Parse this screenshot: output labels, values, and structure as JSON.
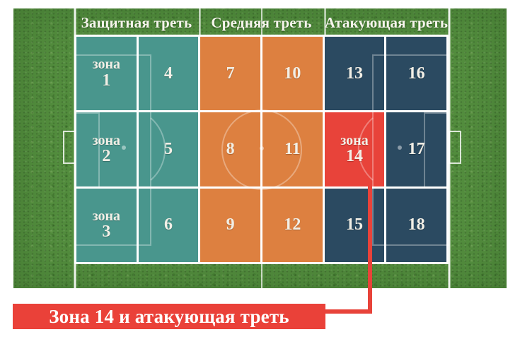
{
  "banner": {
    "label": "Зона 14 и атакующая треть"
  },
  "thirds": [
    {
      "id": "defensive",
      "label": "Защитная треть"
    },
    {
      "id": "middle",
      "label": "Средняя треть"
    },
    {
      "id": "attacking",
      "label": "Атакующая треть"
    }
  ],
  "zones": [
    {
      "prefix": "зона",
      "number": "1",
      "color": "teal"
    },
    {
      "prefix": "",
      "number": "4",
      "color": "teal"
    },
    {
      "prefix": "",
      "number": "7",
      "color": "orange"
    },
    {
      "prefix": "",
      "number": "10",
      "color": "orange"
    },
    {
      "prefix": "",
      "number": "13",
      "color": "navy"
    },
    {
      "prefix": "",
      "number": "16",
      "color": "navy"
    },
    {
      "prefix": "зона",
      "number": "2",
      "color": "teal"
    },
    {
      "prefix": "",
      "number": "5",
      "color": "teal"
    },
    {
      "prefix": "",
      "number": "8",
      "color": "orange"
    },
    {
      "prefix": "",
      "number": "11",
      "color": "orange"
    },
    {
      "prefix": "зона",
      "number": "14",
      "color": "red"
    },
    {
      "prefix": "",
      "number": "17",
      "color": "navy"
    },
    {
      "prefix": "зона",
      "number": "3",
      "color": "teal"
    },
    {
      "prefix": "",
      "number": "6",
      "color": "teal"
    },
    {
      "prefix": "",
      "number": "9",
      "color": "orange"
    },
    {
      "prefix": "",
      "number": "12",
      "color": "orange"
    },
    {
      "prefix": "",
      "number": "15",
      "color": "navy"
    },
    {
      "prefix": "",
      "number": "18",
      "color": "navy"
    }
  ],
  "palette": {
    "teal": "#49968d",
    "orange": "#dd8040",
    "navy": "#2b4a61",
    "red": "#e8433a",
    "banner_red": "#ea4139",
    "grass": "#528c3d",
    "grid_line": "#ffffff",
    "label_text": "#f2efe6"
  }
}
